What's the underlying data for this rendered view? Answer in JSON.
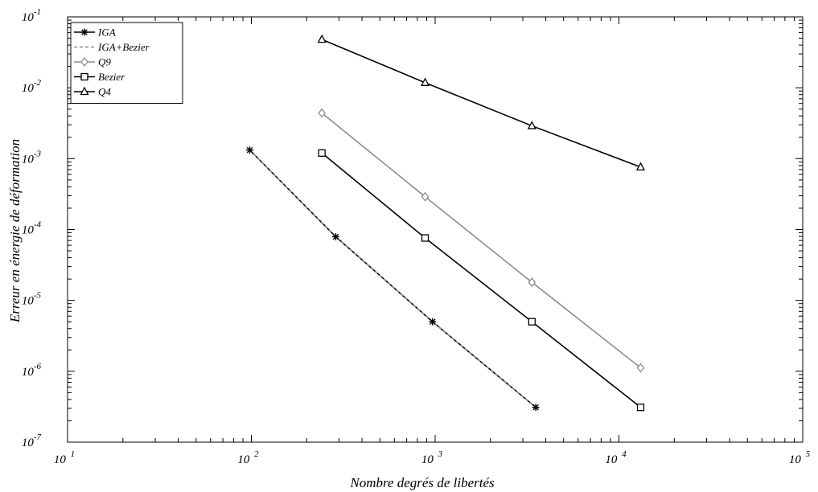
{
  "chart_data": {
    "type": "line",
    "xscale": "log",
    "yscale": "log",
    "xlabel": "Nombre degrés de libertés",
    "ylabel": "Erreur en énergie de déformation",
    "xlim": [
      10,
      100000
    ],
    "ylim": [
      1e-07,
      0.1
    ],
    "grid": false,
    "legend_position": "top-left",
    "x_ticks": [
      {
        "value": 10,
        "base": "10",
        "exp": "1"
      },
      {
        "value": 100,
        "base": "10",
        "exp": "2"
      },
      {
        "value": 1000,
        "base": "10",
        "exp": "3"
      },
      {
        "value": 10000,
        "base": "10",
        "exp": "4"
      },
      {
        "value": 100000,
        "base": "10",
        "exp": "5"
      }
    ],
    "y_ticks": [
      {
        "value": 1e-07,
        "base": "10",
        "exp": "-7"
      },
      {
        "value": 1e-06,
        "base": "10",
        "exp": "-6"
      },
      {
        "value": 1e-05,
        "base": "10",
        "exp": "-5"
      },
      {
        "value": 0.0001,
        "base": "10",
        "exp": "-4"
      },
      {
        "value": 0.001,
        "base": "10",
        "exp": "-3"
      },
      {
        "value": 0.01,
        "base": "10",
        "exp": "-2"
      },
      {
        "value": 0.1,
        "base": "10",
        "exp": "-1"
      }
    ],
    "series": [
      {
        "name": "IGA",
        "color": "#000000",
        "dash": "",
        "marker": "star",
        "x": [
          98,
          288,
          968,
          3528
        ],
        "y": [
          0.00132,
          7.9e-05,
          5e-06,
          3.1e-07
        ]
      },
      {
        "name": "IGA+Bezier",
        "color": "#8c8c8c",
        "dash": "4,3",
        "marker": "none",
        "x": [
          98,
          288,
          968,
          3528
        ],
        "y": [
          0.00132,
          7.9e-05,
          5e-06,
          3.1e-07
        ]
      },
      {
        "name": "Q9",
        "color": "#8c8c8c",
        "dash": "",
        "marker": "diamond",
        "x": [
          242,
          882,
          3362,
          13122
        ],
        "y": [
          0.0044,
          0.00029,
          1.8e-05,
          1.12e-06
        ]
      },
      {
        "name": "Bezier",
        "color": "#000000",
        "dash": "",
        "marker": "square",
        "x": [
          242,
          882,
          3362,
          13122
        ],
        "y": [
          0.0012,
          7.6e-05,
          5e-06,
          3.1e-07
        ]
      },
      {
        "name": "Q4",
        "color": "#000000",
        "dash": "",
        "marker": "triangle",
        "x": [
          242,
          882,
          3362,
          13122
        ],
        "y": [
          0.048,
          0.0118,
          0.0029,
          0.00076
        ]
      }
    ]
  }
}
